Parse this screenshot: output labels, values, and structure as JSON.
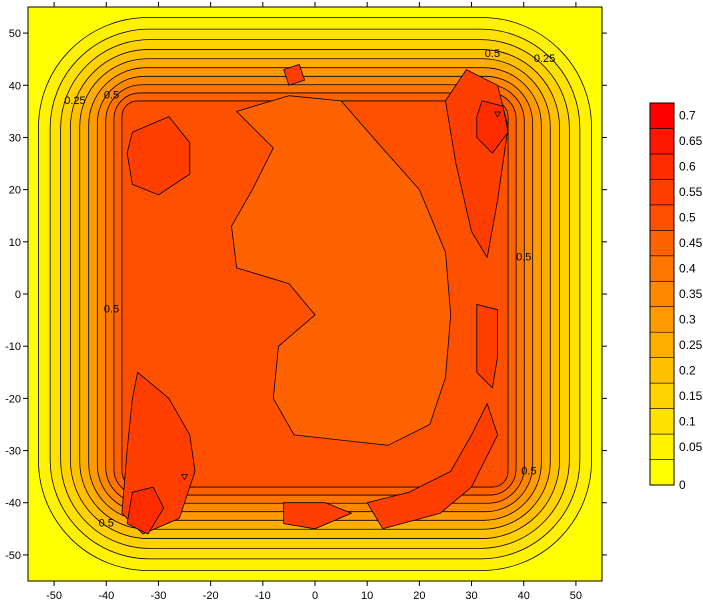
{
  "chart_data": {
    "type": "heatmap",
    "subtype": "filled-contour",
    "title": "",
    "xlabel": "",
    "ylabel": "",
    "xlim": [
      -55,
      55
    ],
    "ylim": [
      -55,
      55
    ],
    "x_ticks": [
      -50,
      -40,
      -30,
      -20,
      -10,
      0,
      10,
      20,
      30,
      40,
      50
    ],
    "y_ticks": [
      50,
      40,
      30,
      20,
      10,
      0,
      -10,
      -20,
      -30,
      -40,
      -50
    ],
    "contour_interval": 0.05,
    "grid": false,
    "colorbar": {
      "placement": "right",
      "levels": [
        {
          "value": 0,
          "label": "0",
          "color": "#ffff00"
        },
        {
          "value": 0.05,
          "label": "0.05",
          "color": "#fff200"
        },
        {
          "value": 0.1,
          "label": "0.1",
          "color": "#ffe200"
        },
        {
          "value": 0.15,
          "label": "0.15",
          "color": "#ffd200"
        },
        {
          "value": 0.2,
          "label": "0.2",
          "color": "#ffc000"
        },
        {
          "value": 0.25,
          "label": "0.25",
          "color": "#ffae00"
        },
        {
          "value": 0.3,
          "label": "0.3",
          "color": "#ff9b00"
        },
        {
          "value": 0.35,
          "label": "0.35",
          "color": "#ff8800"
        },
        {
          "value": 0.4,
          "label": "0.4",
          "color": "#ff7500"
        },
        {
          "value": 0.45,
          "label": "0.45",
          "color": "#ff6200"
        },
        {
          "value": 0.5,
          "label": "0.5",
          "color": "#ff5000"
        },
        {
          "value": 0.55,
          "label": "0.55",
          "color": "#ff3e00"
        },
        {
          "value": 0.6,
          "label": "0.6",
          "color": "#ff2c00"
        },
        {
          "value": 0.65,
          "label": "0.65",
          "color": "#ff1800"
        },
        {
          "value": 0.7,
          "label": "0.7",
          "color": "#ff0000"
        }
      ]
    },
    "contour_labels": [
      {
        "text": "0.25",
        "x": -46,
        "y": 37
      },
      {
        "text": "0.5",
        "x": -39,
        "y": 38
      },
      {
        "text": "0.5",
        "x": 34,
        "y": 46
      },
      {
        "text": "0.25",
        "x": 44,
        "y": 45
      },
      {
        "text": "0.5",
        "x": -39,
        "y": -3
      },
      {
        "text": "0.5",
        "x": 40,
        "y": 7
      },
      {
        "text": "0.5",
        "x": 41,
        "y": -34
      },
      {
        "text": "0.5",
        "x": -40,
        "y": -44
      }
    ],
    "peak_markers": [
      {
        "x": 35,
        "y": 34.5
      },
      {
        "x": -25,
        "y": -35
      }
    ]
  }
}
